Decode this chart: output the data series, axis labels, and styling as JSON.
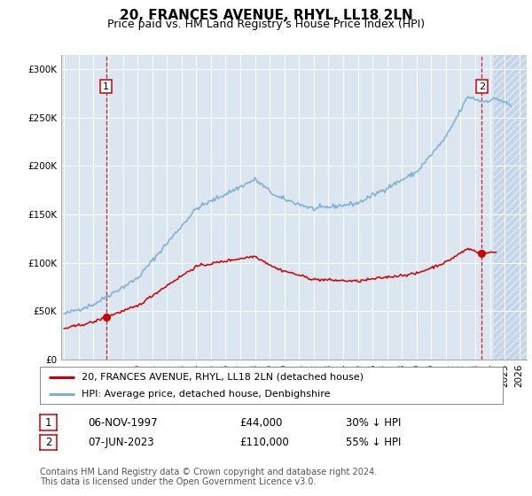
{
  "title": "20, FRANCES AVENUE, RHYL, LL18 2LN",
  "subtitle": "Price paid vs. HM Land Registry's House Price Index (HPI)",
  "ylim": [
    0,
    315000
  ],
  "yticks": [
    0,
    50000,
    100000,
    150000,
    200000,
    250000,
    300000
  ],
  "ytick_labels": [
    "£0",
    "£50K",
    "£100K",
    "£150K",
    "£200K",
    "£250K",
    "£300K"
  ],
  "xlim_start": 1994.8,
  "xlim_end": 2026.5,
  "sale1_date": 1997.85,
  "sale1_price": 44000,
  "sale2_date": 2023.44,
  "sale2_price": 110000,
  "hatch_start": 2024.25,
  "background_color": "#dce6f1",
  "hatch_color": "#c5d5e8",
  "red_line_color": "#cc0000",
  "blue_line_color": "#7bafd4",
  "marker_color": "#cc0000",
  "vline_color": "#cc0000",
  "legend_label1": "20, FRANCES AVENUE, RHYL, LL18 2LN (detached house)",
  "legend_label2": "HPI: Average price, detached house, Denbighshire",
  "table_row1": [
    "1",
    "06-NOV-1997",
    "£44,000",
    "30% ↓ HPI"
  ],
  "table_row2": [
    "2",
    "07-JUN-2023",
    "£110,000",
    "55% ↓ HPI"
  ],
  "footer": "Contains HM Land Registry data © Crown copyright and database right 2024.\nThis data is licensed under the Open Government Licence v3.0.",
  "title_fontsize": 11,
  "subtitle_fontsize": 9,
  "tick_fontsize": 7.5
}
